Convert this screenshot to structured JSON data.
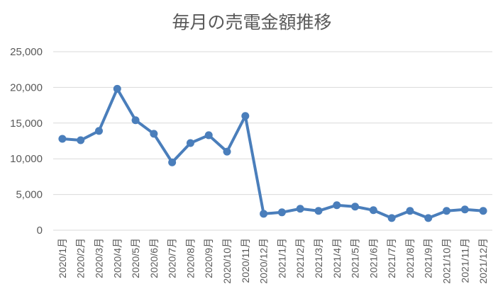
{
  "chart_data": {
    "type": "line",
    "title": "毎月の売電金額推移",
    "xlabel": "",
    "ylabel": "",
    "ylim": [
      0,
      25000
    ],
    "yticks": [
      0,
      5000,
      10000,
      15000,
      20000,
      25000
    ],
    "ytick_labels": [
      "0",
      "5,000",
      "10,000",
      "15,000",
      "20,000",
      "25,000"
    ],
    "grid": true,
    "legend": "none",
    "categories": [
      "2020/1月",
      "2020/2月",
      "2020/3月",
      "2020/4月",
      "2020/5月",
      "2020/6月",
      "2020/7月",
      "2020/8月",
      "2020/9月",
      "2020/10月",
      "2020/11月",
      "2020/12月",
      "2021/1月",
      "2021/2月",
      "2021/3月",
      "2021/4月",
      "2021/5月",
      "2021/6月",
      "2021/7月",
      "2021/8月",
      "2021/9月",
      "2021/10月",
      "2021/11月",
      "2021/12月"
    ],
    "series": [
      {
        "color": "#4a7ebb",
        "values": [
          12800,
          12600,
          13900,
          19800,
          15400,
          13500,
          9500,
          12200,
          13300,
          11000,
          16000,
          2300,
          2500,
          3000,
          2700,
          3500,
          3300,
          2800,
          1700,
          2700,
          1700,
          2700,
          2900,
          2700
        ]
      }
    ]
  }
}
